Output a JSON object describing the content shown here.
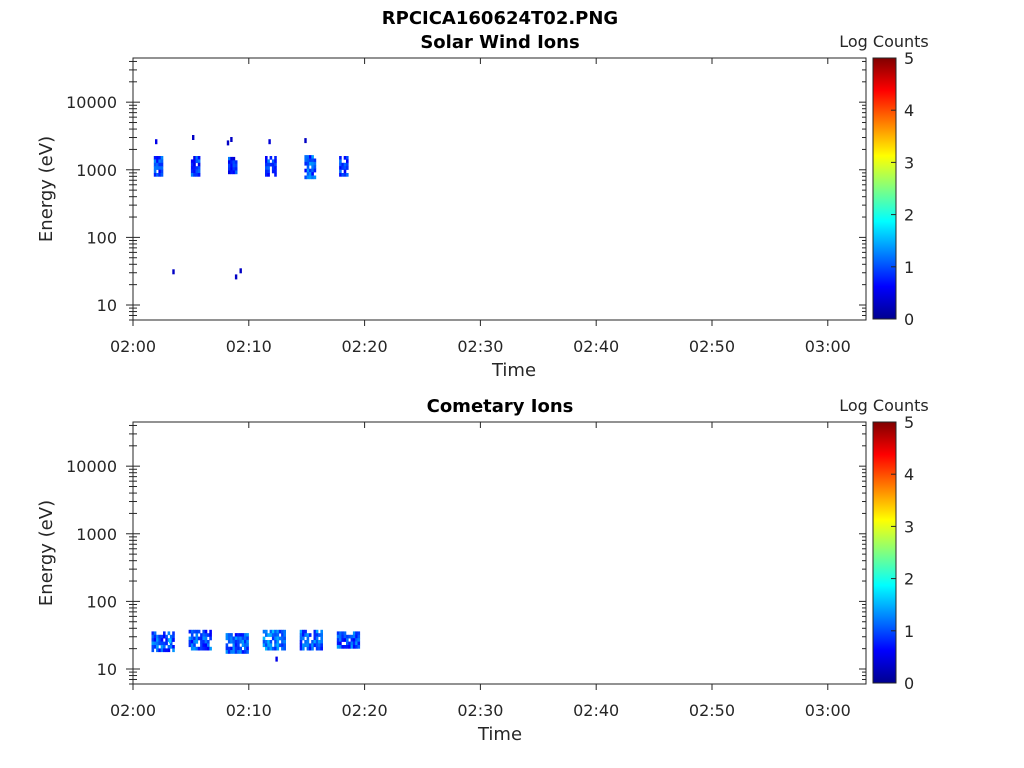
{
  "figure_title": "RPCICA160624T02.PNG",
  "colormap_colors": [
    "#00008f",
    "#0000ff",
    "#0080ff",
    "#00ffff",
    "#80ff80",
    "#ffff00",
    "#ff8000",
    "#ff0000",
    "#800000"
  ],
  "chart_data": [
    {
      "type": "heatmap",
      "title": "Solar Wind Ions",
      "xlabel": "Time",
      "ylabel": "Energy (eV)",
      "x_ticks": [
        "02:00",
        "02:10",
        "02:20",
        "02:30",
        "02:40",
        "02:50",
        "03:00"
      ],
      "xlim_minutes": [
        0,
        63.3
      ],
      "y_scale": "log",
      "y_ticks": [
        10,
        100,
        1000,
        10000
      ],
      "y_tick_labels": [
        "10",
        "100",
        "1000",
        "10000"
      ],
      "ylim": [
        6,
        45000
      ],
      "colorbar_label": "Log Counts",
      "colorbar_ticks": [
        "0",
        "1",
        "2",
        "3",
        "4",
        "5"
      ],
      "colorbar_range": [
        0,
        5
      ],
      "clusters": [
        {
          "t_min": 1.8,
          "t_max": 2.5,
          "e_min": 850,
          "e_max": 1600,
          "value": 0.9
        },
        {
          "t_min": 5.0,
          "t_max": 5.7,
          "e_min": 850,
          "e_max": 1600,
          "value": 0.9
        },
        {
          "t_min": 8.2,
          "t_max": 8.9,
          "e_min": 900,
          "e_max": 1550,
          "value": 0.8
        },
        {
          "t_min": 11.4,
          "t_max": 12.2,
          "e_min": 850,
          "e_max": 1600,
          "value": 0.9
        },
        {
          "t_min": 14.8,
          "t_max": 15.7,
          "e_min": 800,
          "e_max": 1650,
          "value": 1.0
        },
        {
          "t_min": 17.8,
          "t_max": 18.5,
          "e_min": 850,
          "e_max": 1600,
          "value": 0.9
        }
      ],
      "points": [
        {
          "t": 2.0,
          "e": 2600,
          "value": 0.5
        },
        {
          "t": 5.2,
          "e": 3000,
          "value": 0.3
        },
        {
          "t": 8.5,
          "e": 2800,
          "value": 0.3
        },
        {
          "t": 8.2,
          "e": 2500,
          "value": 0.3
        },
        {
          "t": 11.8,
          "e": 2600,
          "value": 0.4
        },
        {
          "t": 14.9,
          "e": 2700,
          "value": 0.3
        },
        {
          "t": 3.5,
          "e": 31,
          "value": 0.3
        },
        {
          "t": 8.9,
          "e": 26,
          "value": 0.3
        },
        {
          "t": 9.3,
          "e": 32,
          "value": 0.3
        }
      ]
    },
    {
      "type": "heatmap",
      "title": "Cometary Ions",
      "xlabel": "Time",
      "ylabel": "Energy (eV)",
      "x_ticks": [
        "02:00",
        "02:10",
        "02:20",
        "02:30",
        "02:40",
        "02:50",
        "03:00"
      ],
      "xlim_minutes": [
        0,
        63.3
      ],
      "y_scale": "log",
      "y_ticks": [
        10,
        100,
        1000,
        10000
      ],
      "y_tick_labels": [
        "10",
        "100",
        "1000",
        "10000"
      ],
      "ylim": [
        6,
        45000
      ],
      "colorbar_label": "Log Counts",
      "colorbar_ticks": [
        "0",
        "1",
        "2",
        "3",
        "4",
        "5"
      ],
      "colorbar_range": [
        0,
        5
      ],
      "clusters": [
        {
          "t_min": 1.6,
          "t_max": 3.5,
          "e_min": 19,
          "e_max": 36,
          "value": 1.0
        },
        {
          "t_min": 4.8,
          "t_max": 6.7,
          "e_min": 19,
          "e_max": 38,
          "value": 1.0
        },
        {
          "t_min": 8.0,
          "t_max": 9.9,
          "e_min": 19,
          "e_max": 34,
          "value": 1.0
        },
        {
          "t_min": 11.2,
          "t_max": 13.0,
          "e_min": 19,
          "e_max": 38,
          "value": 1.2
        },
        {
          "t_min": 14.4,
          "t_max": 16.2,
          "e_min": 19,
          "e_max": 38,
          "value": 1.1
        },
        {
          "t_min": 17.6,
          "t_max": 19.5,
          "e_min": 22,
          "e_max": 36,
          "value": 1.0
        }
      ],
      "points": [
        {
          "t": 12.4,
          "e": 14,
          "value": 0.5
        },
        {
          "t": 3.2,
          "e": 26,
          "value": 1.6
        }
      ]
    }
  ]
}
